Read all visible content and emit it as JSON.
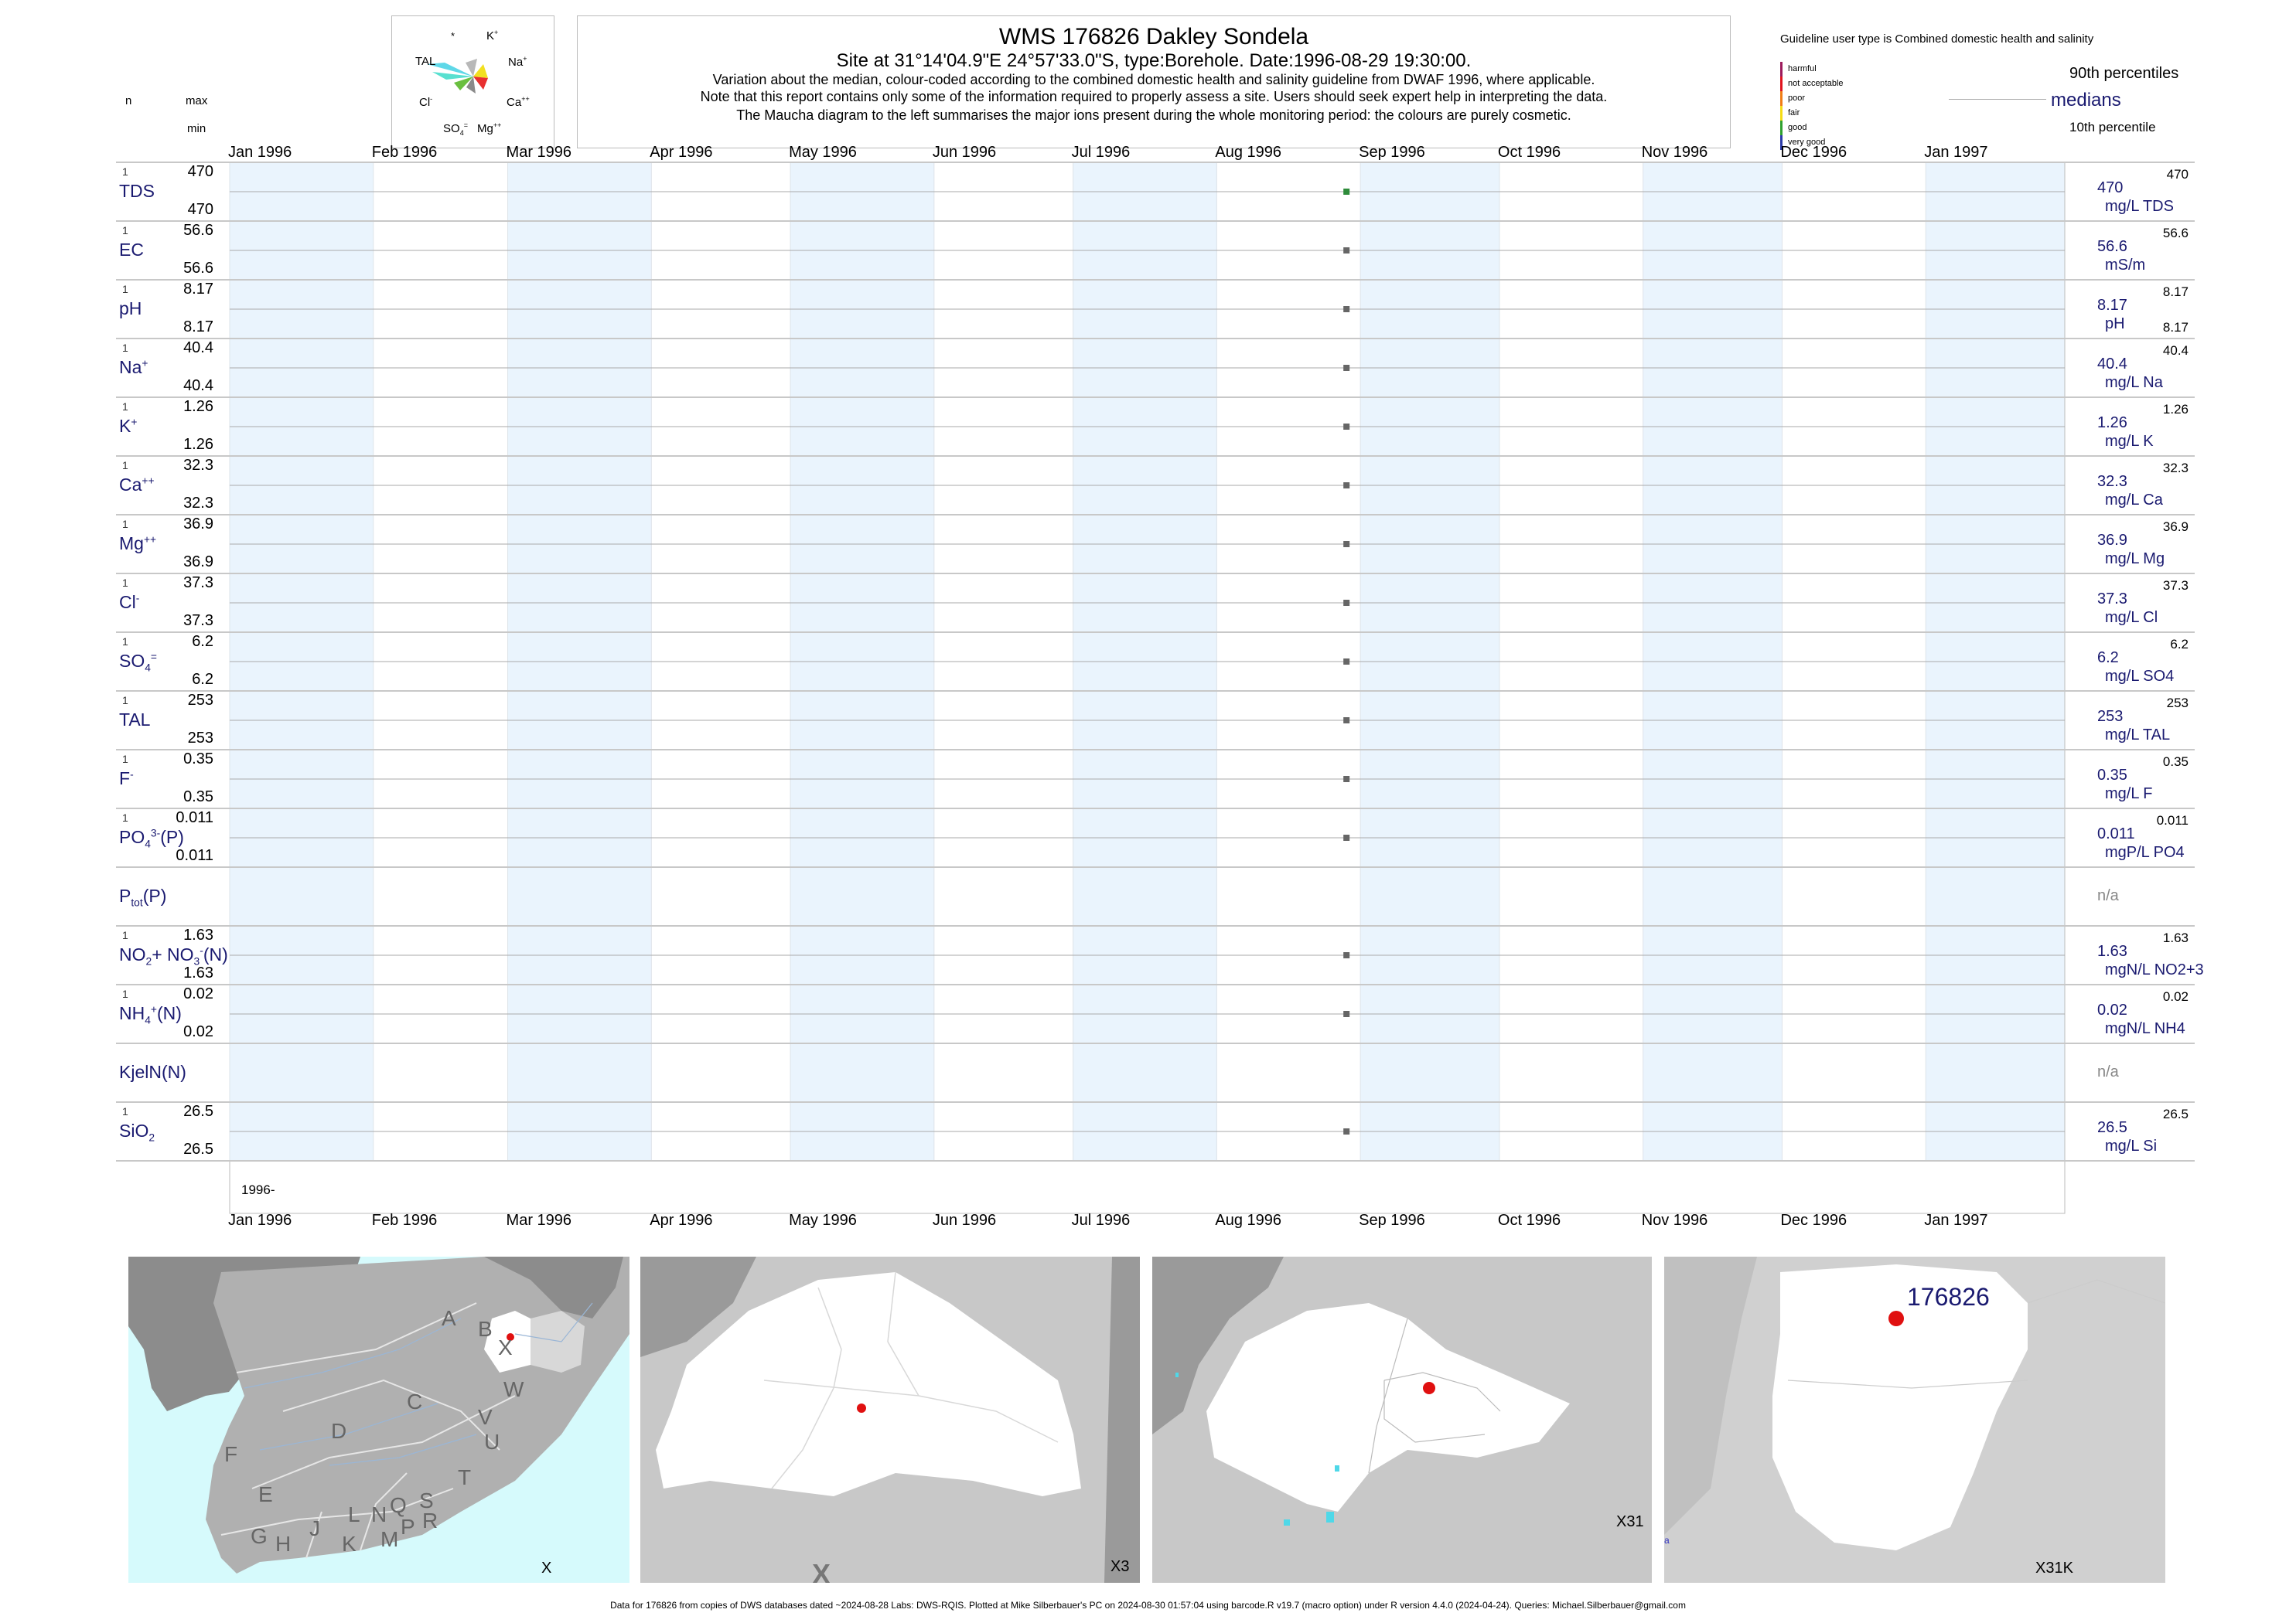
{
  "header": {
    "title": "WMS 176826  Dakley Sondela",
    "subtitle": "Site at 31°14'04.9\"E 24°57'33.0\"S, type:Borehole. Date:1996-08-29 19:30:00.",
    "note1": "Variation about the median,  colour-coded according to the combined domestic health and salinity guideline from DWAF 1996, where applicable.",
    "note2": "Note that this report contains only some of the information required to properly assess a site. Users should seek expert help in interpreting the data.",
    "note3": "The Maucha diagram to the left summarises the major ions present during the whole monitoring period: the colours are purely cosmetic."
  },
  "left_header": {
    "n": "n",
    "max": "max",
    "min": "min"
  },
  "maucha": {
    "labels": {
      "star": "*",
      "k": "K",
      "k_sup": "+",
      "tal": "TAL",
      "na": "Na",
      "na_sup": "+",
      "cl": "Cl",
      "cl_sup": "-",
      "ca": "Ca",
      "ca_sup": "++",
      "so4": "SO",
      "so4_sub": "4",
      "so4_sup": "=",
      "mg": "Mg",
      "mg_sup": "++"
    }
  },
  "legend": {
    "title": "Guideline user type is Combined domestic health and salinity",
    "classes": [
      {
        "name": "harmful",
        "color": "#9c1b5c"
      },
      {
        "name": "not acceptable",
        "color": "#e0141e"
      },
      {
        "name": "poor",
        "color": "#f07d14"
      },
      {
        "name": "fair",
        "color": "#f5dc14"
      },
      {
        "name": "good",
        "color": "#2fa02f"
      },
      {
        "name": "very good",
        "color": "#2a3aa8"
      }
    ],
    "p90": "90th percentiles",
    "medians": "medians",
    "p10": "10th percentile"
  },
  "months": [
    "Jan 1996",
    "Feb 1996",
    "Mar 1996",
    "Apr 1996",
    "May 1996",
    "Jun 1996",
    "Jul 1996",
    "Aug 1996",
    "Sep 1996",
    "Oct 1996",
    "Nov 1996",
    "Dec 1996",
    "Jan 1997"
  ],
  "year_label": "1996-",
  "chart_data": {
    "type": "scatter",
    "x_axis": {
      "start": "1996-01-01",
      "end": "1997-01-31"
    },
    "sample_date": "1996-08-29",
    "series": [
      {
        "name": "TDS",
        "n": "1",
        "max": "470",
        "min": "470",
        "median": "470",
        "unit": "mg/L TDS",
        "p90": "470",
        "color": "#2e8b3a"
      },
      {
        "name": "EC",
        "n": "1",
        "max": "56.6",
        "min": "56.6",
        "median": "56.6",
        "unit": "mS/m",
        "p90": "56.6",
        "color": "#666"
      },
      {
        "name": "pH",
        "n": "1",
        "max": "8.17",
        "min": "8.17",
        "median": "8.17",
        "unit": "pH",
        "p90": "8.17",
        "p10": "8.17",
        "color": "#666"
      },
      {
        "name": "Na",
        "sup": "+",
        "n": "1",
        "max": "40.4",
        "min": "40.4",
        "median": "40.4",
        "unit": "mg/L Na",
        "p90": "40.4",
        "color": "#666"
      },
      {
        "name": "K",
        "sup": "+",
        "n": "1",
        "max": "1.26",
        "min": "1.26",
        "median": "1.26",
        "unit": "mg/L K",
        "p90": "1.26",
        "color": "#666"
      },
      {
        "name": "Ca",
        "sup": "++",
        "n": "1",
        "max": "32.3",
        "min": "32.3",
        "median": "32.3",
        "unit": "mg/L Ca",
        "p90": "32.3",
        "color": "#666"
      },
      {
        "name": "Mg",
        "sup": "++",
        "n": "1",
        "max": "36.9",
        "min": "36.9",
        "median": "36.9",
        "unit": "mg/L Mg",
        "p90": "36.9",
        "color": "#666"
      },
      {
        "name": "Cl",
        "sup": "-",
        "n": "1",
        "max": "37.3",
        "min": "37.3",
        "median": "37.3",
        "unit": "mg/L Cl",
        "p90": "37.3",
        "color": "#666"
      },
      {
        "name": "SO",
        "sub": "4",
        "sup": "=",
        "n": "1",
        "max": "6.2",
        "min": "6.2",
        "median": "6.2",
        "unit": "mg/L SO4",
        "p90": "6.2",
        "color": "#666"
      },
      {
        "name": "TAL",
        "n": "1",
        "max": "253",
        "min": "253",
        "median": "253",
        "unit": "mg/L TAL",
        "p90": "253",
        "color": "#666"
      },
      {
        "name": "F",
        "sup": "-",
        "n": "1",
        "max": "0.35",
        "min": "0.35",
        "median": "0.35",
        "unit": "mg/L F",
        "p90": "0.35",
        "color": "#666"
      },
      {
        "name": "PO",
        "sub": "4",
        "sup": "3-",
        "suffix": "(P)",
        "n": "1",
        "max": "0.011",
        "min": "0.011",
        "median": "0.011",
        "unit": "mgP/L PO4",
        "p90": "0.011",
        "color": "#666"
      },
      {
        "name": "P",
        "sub": "tot",
        "suffix": "(P)",
        "na": "n/a"
      },
      {
        "name": "NO",
        "sub": "2",
        "mid": "+ NO",
        "sub2": "3",
        "sup2": "-",
        "suffix": "(N)",
        "n": "1",
        "max": "1.63",
        "min": "1.63",
        "median": "1.63",
        "unit": "mgN/L NO2+3",
        "p90": "1.63",
        "color": "#666"
      },
      {
        "name": "NH",
        "sub": "4",
        "sup": "+",
        "suffix": "(N)",
        "n": "1",
        "max": "0.02",
        "min": "0.02",
        "median": "0.02",
        "unit": "mgN/L NH4",
        "p90": "0.02",
        "color": "#666"
      },
      {
        "name": "KjelN(N)",
        "na": "n/a"
      },
      {
        "name": "SiO",
        "sub": "2",
        "n": "1",
        "max": "26.5",
        "min": "26.5",
        "median": "26.5",
        "unit": "mg/L Si",
        "p90": "26.5",
        "color": "#666"
      }
    ]
  },
  "maps": {
    "m1": {
      "label": "X",
      "letters": [
        "A",
        "B",
        "X",
        "W",
        "C",
        "V",
        "U",
        "D",
        "T",
        "F",
        "E",
        "S",
        "R",
        "Q",
        "N",
        "L",
        "P",
        "M",
        "K",
        "J",
        "H",
        "G"
      ]
    },
    "m2": {
      "label": "X3",
      "mark": "X"
    },
    "m3": {
      "label": "X31"
    },
    "m4": {
      "label": "X31K",
      "site": "176826",
      "edge": "a"
    }
  },
  "footer": "Data for 176826 from copies of DWS databases dated ~2024-08-28 Labs: DWS-RQIS. Plotted at Mike Silberbauer's PC on 2024-08-30 01:57:04 using barcode.R v19.7 (macro option) under R version 4.4.0 (2024-04-24). Queries: Michael.Silberbauer@gmail.com"
}
